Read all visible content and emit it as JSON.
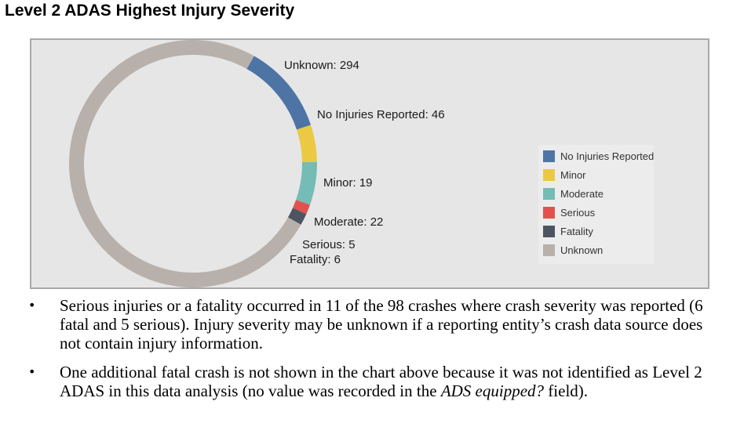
{
  "title": "Level 2 ADAS Highest Injury Severity",
  "chart_data": {
    "type": "pie",
    "title": "",
    "categories": [
      "No Injuries Reported",
      "Minor",
      "Moderate",
      "Serious",
      "Fatality",
      "Unknown"
    ],
    "values": [
      46,
      19,
      22,
      5,
      6,
      294
    ],
    "colors": [
      "#4d74a4",
      "#ecc944",
      "#74bcb5",
      "#e1524e",
      "#4d5461",
      "#b8b0aa"
    ],
    "data_labels": [
      "No Injuries Reported: 46",
      "Minor: 19",
      "Moderate: 22",
      "Serious: 5",
      "Fatality: 6",
      "Unknown: 294"
    ],
    "legend": {
      "position": "right",
      "entries": [
        "No Injuries Reported",
        "Minor",
        "Moderate",
        "Serious",
        "Fatality",
        "Unknown"
      ]
    }
  },
  "bullets": [
    {
      "segments": [
        {
          "text": "Serious injuries or a fatality occurred in 11 of the 98 crashes where crash severity was reported (6 fatal and 5 serious). Injury severity may be unknown if a reporting entity’s crash data source does not contain injury information.",
          "italic": false
        }
      ]
    },
    {
      "segments": [
        {
          "text": "One additional fatal crash is not shown in the chart above because it was not identified as Level 2 ADAS in this data analysis (no value was recorded in the ",
          "italic": false
        },
        {
          "text": "ADS equipped?",
          "italic": true
        },
        {
          "text": " field).",
          "italic": false
        }
      ]
    }
  ],
  "bullet_marker": "•"
}
